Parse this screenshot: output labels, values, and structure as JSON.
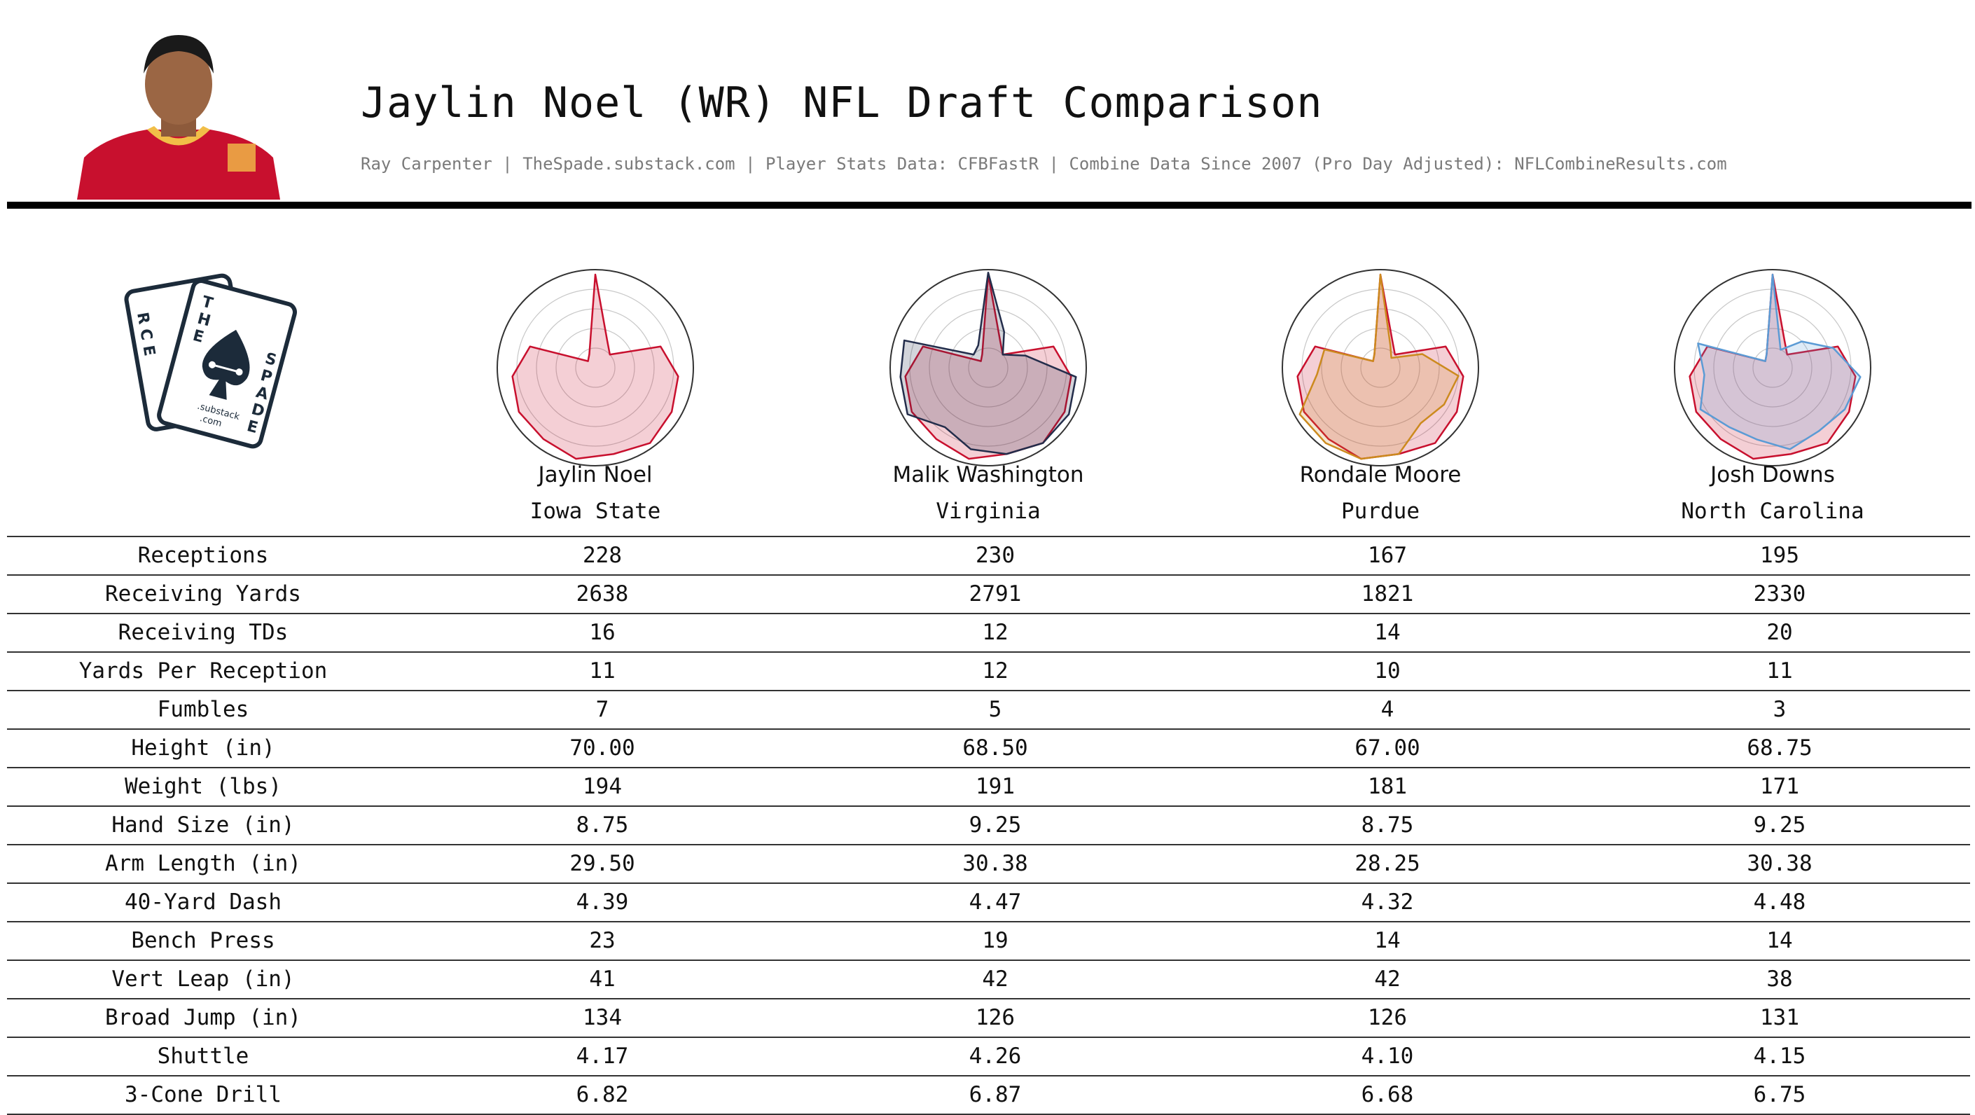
{
  "header": {
    "title": "Jaylin Noel (WR) NFL Draft Comparison",
    "subtitle": "Ray Carpenter | TheSpade.substack.com | Player Stats Data: CFBFastR | Combine Data Since 2007 (Pro Day Adjusted): NFLCombineResults.com"
  },
  "logo": {
    "card_back_letters": [
      "R",
      "C",
      "E"
    ],
    "card_front_letters_left": [
      "T",
      "H",
      "E"
    ],
    "card_front_letters_right": [
      "S",
      "P",
      "A",
      "D",
      "E"
    ],
    "substack_text": ".substack",
    "com_text": ".com"
  },
  "players": [
    {
      "name": "Jaylin Noel",
      "school": "Iowa State",
      "color": "#c8102e"
    },
    {
      "name": "Malik Washington",
      "school": "Virginia",
      "color": "#232d4b"
    },
    {
      "name": "Rondale Moore",
      "school": "Purdue",
      "color": "#cc8a1e"
    },
    {
      "name": "Josh Downs",
      "school": "North Carolina",
      "color": "#5b9bd5"
    }
  ],
  "table": {
    "rows": [
      {
        "label": "Receptions",
        "values": [
          "228",
          "230",
          "167",
          "195"
        ]
      },
      {
        "label": "Receiving Yards",
        "values": [
          "2638",
          "2791",
          "1821",
          "2330"
        ]
      },
      {
        "label": "Receiving TDs",
        "values": [
          "16",
          "12",
          "14",
          "20"
        ]
      },
      {
        "label": "Yards Per Reception",
        "values": [
          "11",
          "12",
          "10",
          "11"
        ]
      },
      {
        "label": "Fumbles",
        "values": [
          "7",
          "5",
          "4",
          "3"
        ]
      },
      {
        "label": "Height (in)",
        "values": [
          "70.00",
          "68.50",
          "67.00",
          "68.75"
        ]
      },
      {
        "label": "Weight (lbs)",
        "values": [
          "194",
          "191",
          "181",
          "171"
        ]
      },
      {
        "label": "Hand Size (in)",
        "values": [
          "8.75",
          "9.25",
          "8.75",
          "9.25"
        ]
      },
      {
        "label": "Arm Length (in)",
        "values": [
          "29.50",
          "30.38",
          "28.25",
          "30.38"
        ]
      },
      {
        "label": "40-Yard Dash",
        "values": [
          "4.39",
          "4.47",
          "4.32",
          "4.48"
        ]
      },
      {
        "label": "Bench Press",
        "values": [
          "23",
          "19",
          "14",
          "14"
        ]
      },
      {
        "label": "Vert Leap (in)",
        "values": [
          "41",
          "42",
          "42",
          "38"
        ]
      },
      {
        "label": "Broad Jump (in)",
        "values": [
          "134",
          "126",
          "126",
          "131"
        ]
      },
      {
        "label": "Shuttle",
        "values": [
          "4.17",
          "4.26",
          "4.10",
          "4.15"
        ]
      },
      {
        "label": "3-Cone Drill",
        "values": [
          "6.82",
          "6.87",
          "6.68",
          "6.75"
        ]
      }
    ]
  },
  "chart_data": {
    "type": "radar",
    "grid": true,
    "rlim": [
      0,
      1
    ],
    "axes": [
      "Receptions",
      "Receiving Yards",
      "Receiving TDs",
      "Yards Per Reception",
      "Fumbles",
      "Height (in)",
      "Weight (lbs)",
      "Hand Size (in)",
      "Arm Length (in)",
      "40-Yard Dash",
      "Bench Press",
      "Vert Leap (in)",
      "Broad Jump (in)",
      "Shuttle",
      "3-Cone Drill"
    ],
    "series": [
      {
        "name": "Jaylin Noel",
        "values": [
          0.95,
          0.3,
          0.2,
          0.7,
          0.85,
          0.9,
          0.95,
          0.9,
          0.95,
          0.9,
          0.9,
          0.85,
          0.7,
          0.1,
          0.15
        ]
      },
      {
        "name": "Malik Washington",
        "values": [
          0.97,
          0.4,
          0.2,
          0.4,
          0.9,
          0.95,
          0.95,
          0.9,
          0.85,
          0.75,
          0.95,
          0.9,
          0.9,
          0.2,
          0.25
        ]
      },
      {
        "name": "Rondale Moore",
        "values": [
          0.95,
          0.25,
          0.15,
          0.45,
          0.8,
          0.75,
          0.7,
          0.9,
          0.95,
          0.95,
          0.95,
          0.65,
          0.6,
          0.1,
          0.15
        ]
      },
      {
        "name": "Josh Downs",
        "values": [
          0.95,
          0.2,
          0.4,
          0.65,
          0.9,
          0.85,
          0.8,
          0.85,
          0.75,
          0.75,
          0.85,
          0.7,
          0.8,
          0.1,
          0.15
        ]
      }
    ],
    "panels": [
      {
        "series": [
          "Jaylin Noel"
        ]
      },
      {
        "series": [
          "Jaylin Noel",
          "Malik Washington"
        ]
      },
      {
        "series": [
          "Jaylin Noel",
          "Rondale Moore"
        ]
      },
      {
        "series": [
          "Jaylin Noel",
          "Josh Downs"
        ]
      }
    ]
  }
}
